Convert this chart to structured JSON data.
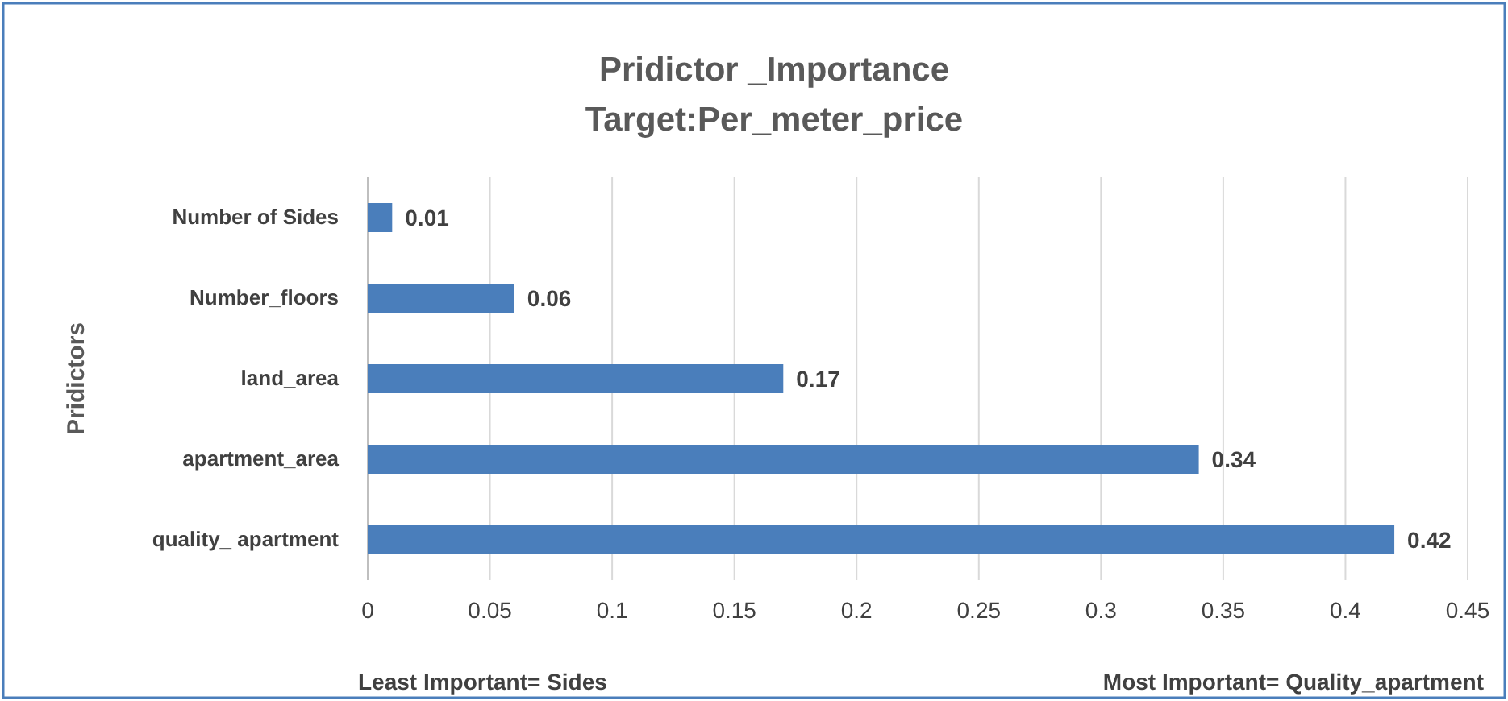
{
  "chart_data": {
    "type": "bar",
    "orientation": "horizontal",
    "title": "Pridictor _Importance\nTarget:Per_meter_price",
    "ylabel": "Pridictors",
    "categories": [
      "Number of Sides",
      "Number_floors",
      "land_area",
      "apartment_area",
      "quality_ apartment"
    ],
    "values": [
      0.01,
      0.06,
      0.17,
      0.34,
      0.42
    ],
    "color": "#4a7ebb",
    "xlim": [
      0,
      0.45
    ],
    "xticks": [
      0,
      0.05,
      0.1,
      0.15,
      0.2,
      0.25,
      0.3,
      0.35,
      0.4,
      0.45
    ],
    "grid": "x",
    "data_labels": true,
    "annotations": [
      "Least Important= Sides",
      "Most Important= Quality_apartment"
    ]
  }
}
